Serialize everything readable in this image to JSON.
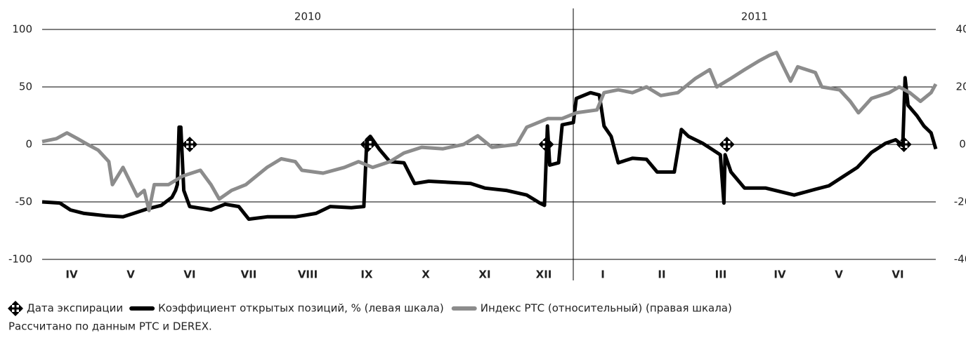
{
  "chart_data": {
    "type": "line",
    "year_labels": [
      "2010",
      "2011"
    ],
    "categories": [
      "IV",
      "V",
      "VI",
      "VII",
      "VIII",
      "IX",
      "X",
      "XI",
      "XII",
      "I",
      "II",
      "III",
      "IV",
      "V",
      "VI"
    ],
    "xlim": [
      0,
      15.14
    ],
    "ylim": [
      -100,
      100
    ],
    "yticks": [
      -100,
      -50,
      0,
      50,
      100
    ],
    "y2lim": [
      -40,
      40
    ],
    "y2ticks": [
      -40,
      -20,
      0,
      20,
      40
    ],
    "grid": true,
    "series": [
      {
        "name": "Коэффициент открытых позиций, % (левая шкала)",
        "color": "#000000",
        "x": [
          0,
          0.3,
          0.48,
          0.71,
          1.07,
          1.37,
          1.55,
          1.79,
          2.02,
          2.2,
          2.26,
          2.29,
          2.32,
          2.35,
          2.4,
          2.5,
          2.86,
          3.1,
          3.33,
          3.5,
          3.81,
          4.29,
          4.64,
          4.88,
          5.24,
          5.45,
          5.5,
          5.56,
          5.71,
          5.89,
          6.13,
          6.31,
          6.55,
          6.9,
          7.26,
          7.5,
          7.86,
          8.21,
          8.43,
          8.51,
          8.56,
          8.6,
          8.75,
          8.81,
          9.0,
          9.05,
          9.29,
          9.44,
          9.52,
          9.64,
          9.76,
          10.0,
          10.24,
          10.42,
          10.71,
          10.83,
          10.95,
          11.19,
          11.37,
          11.49,
          11.55,
          11.57,
          11.67,
          11.9,
          12.26,
          12.74,
          13.1,
          13.33,
          13.57,
          13.81,
          14.05,
          14.29,
          14.46,
          14.58,
          14.62,
          14.67,
          14.82,
          14.94,
          15.06,
          15.14
        ],
        "values": [
          -50,
          -51,
          -57,
          -60,
          -62,
          -63,
          -60,
          -56,
          -53,
          -46,
          -40,
          -35,
          15,
          15,
          -40,
          -54,
          -57,
          -52,
          -54,
          -65,
          -63,
          -63,
          -60,
          -54,
          -55,
          -54,
          4,
          7,
          -4,
          -15,
          -16,
          -34,
          -32,
          -33,
          -34,
          -38,
          -40,
          -44,
          -51,
          -53,
          16,
          -18,
          -16,
          17,
          19,
          40,
          45,
          43,
          16,
          7,
          -16,
          -12,
          -13,
          -24,
          -24,
          13,
          7,
          1,
          -5,
          -9,
          -51,
          -9,
          -24,
          -38,
          -38,
          -44,
          -39,
          -36,
          -28,
          -20,
          -7,
          1,
          4,
          -1,
          58,
          34,
          25,
          16,
          10,
          -4
        ]
      },
      {
        "name": "Индекс РТС (относительный) (правая шкала)",
        "color": "#8c8c8c",
        "axis": "y2",
        "x": [
          0,
          0.24,
          0.42,
          0.6,
          0.77,
          0.95,
          1.13,
          1.19,
          1.37,
          1.49,
          1.61,
          1.73,
          1.81,
          1.9,
          2.14,
          2.38,
          2.68,
          2.86,
          3.0,
          3.21,
          3.45,
          3.81,
          4.05,
          4.29,
          4.4,
          4.76,
          5.12,
          5.36,
          5.6,
          5.89,
          6.13,
          6.43,
          6.79,
          7.14,
          7.38,
          7.62,
          8.04,
          8.21,
          8.57,
          8.81,
          9.05,
          9.4,
          9.52,
          9.76,
          10.0,
          10.24,
          10.48,
          10.77,
          11.07,
          11.31,
          11.43,
          11.67,
          11.9,
          12.14,
          12.32,
          12.44,
          12.68,
          12.8,
          13.1,
          13.21,
          13.51,
          13.69,
          13.83,
          14.05,
          14.35,
          14.52,
          14.7,
          14.88,
          15.06,
          15.14
        ],
        "values": [
          1,
          2,
          4,
          2,
          0,
          -2,
          -6,
          -14,
          -8,
          -13,
          -18,
          -16,
          -23,
          -14,
          -14,
          -11,
          -9,
          -14,
          -19,
          -16,
          -14,
          -8,
          -5,
          -6,
          -9,
          -10,
          -8,
          -6,
          -8,
          -6,
          -3,
          -1,
          -1.5,
          0,
          3,
          -1,
          0,
          6,
          9,
          9,
          11,
          12,
          18,
          19,
          18,
          20,
          17,
          18,
          23,
          26,
          20,
          23,
          26,
          29,
          31,
          32,
          22,
          27,
          25,
          20,
          19,
          15,
          11,
          16,
          18,
          20,
          18,
          15,
          18,
          21
        ]
      }
    ],
    "expirations": {
      "name": "Дата экспирации",
      "x": [
        2.5,
        5.52,
        8.54,
        11.6,
        14.6
      ],
      "values": [
        0,
        0,
        0,
        0,
        0
      ]
    },
    "note": "Рассчитано по данным РТС и DEREX."
  }
}
